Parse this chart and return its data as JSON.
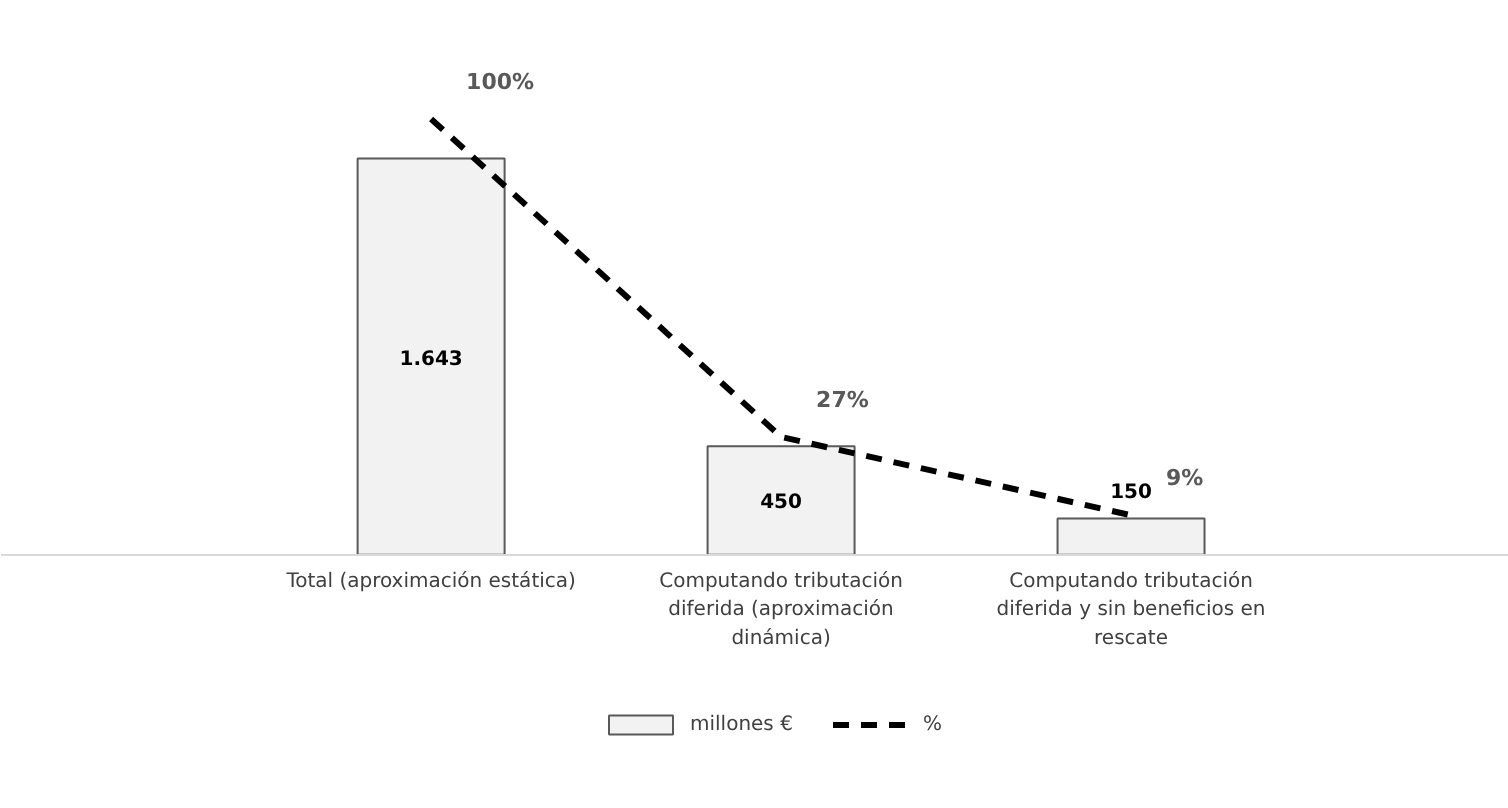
{
  "chart_data": {
    "type": "bar",
    "categories": [
      "Total (aproximación estática)",
      "Computando tributación diferida (aproximación dinámica)",
      "Computando tributación diferida y sin beneficios en rescate"
    ],
    "series": [
      {
        "name": "millones €",
        "color": "#f2f2f2",
        "values": [
          1643,
          450,
          150
        ],
        "value_labels": [
          "1.643",
          "450",
          "150"
        ]
      },
      {
        "name": "%",
        "type": "line",
        "axis": "y2",
        "color": "#000000",
        "line_style": "dashed",
        "values": [
          100,
          27,
          9
        ],
        "value_labels": [
          "100%",
          "27%",
          "9%"
        ]
      }
    ],
    "tick_labels": "x",
    "legend": "bottom"
  }
}
